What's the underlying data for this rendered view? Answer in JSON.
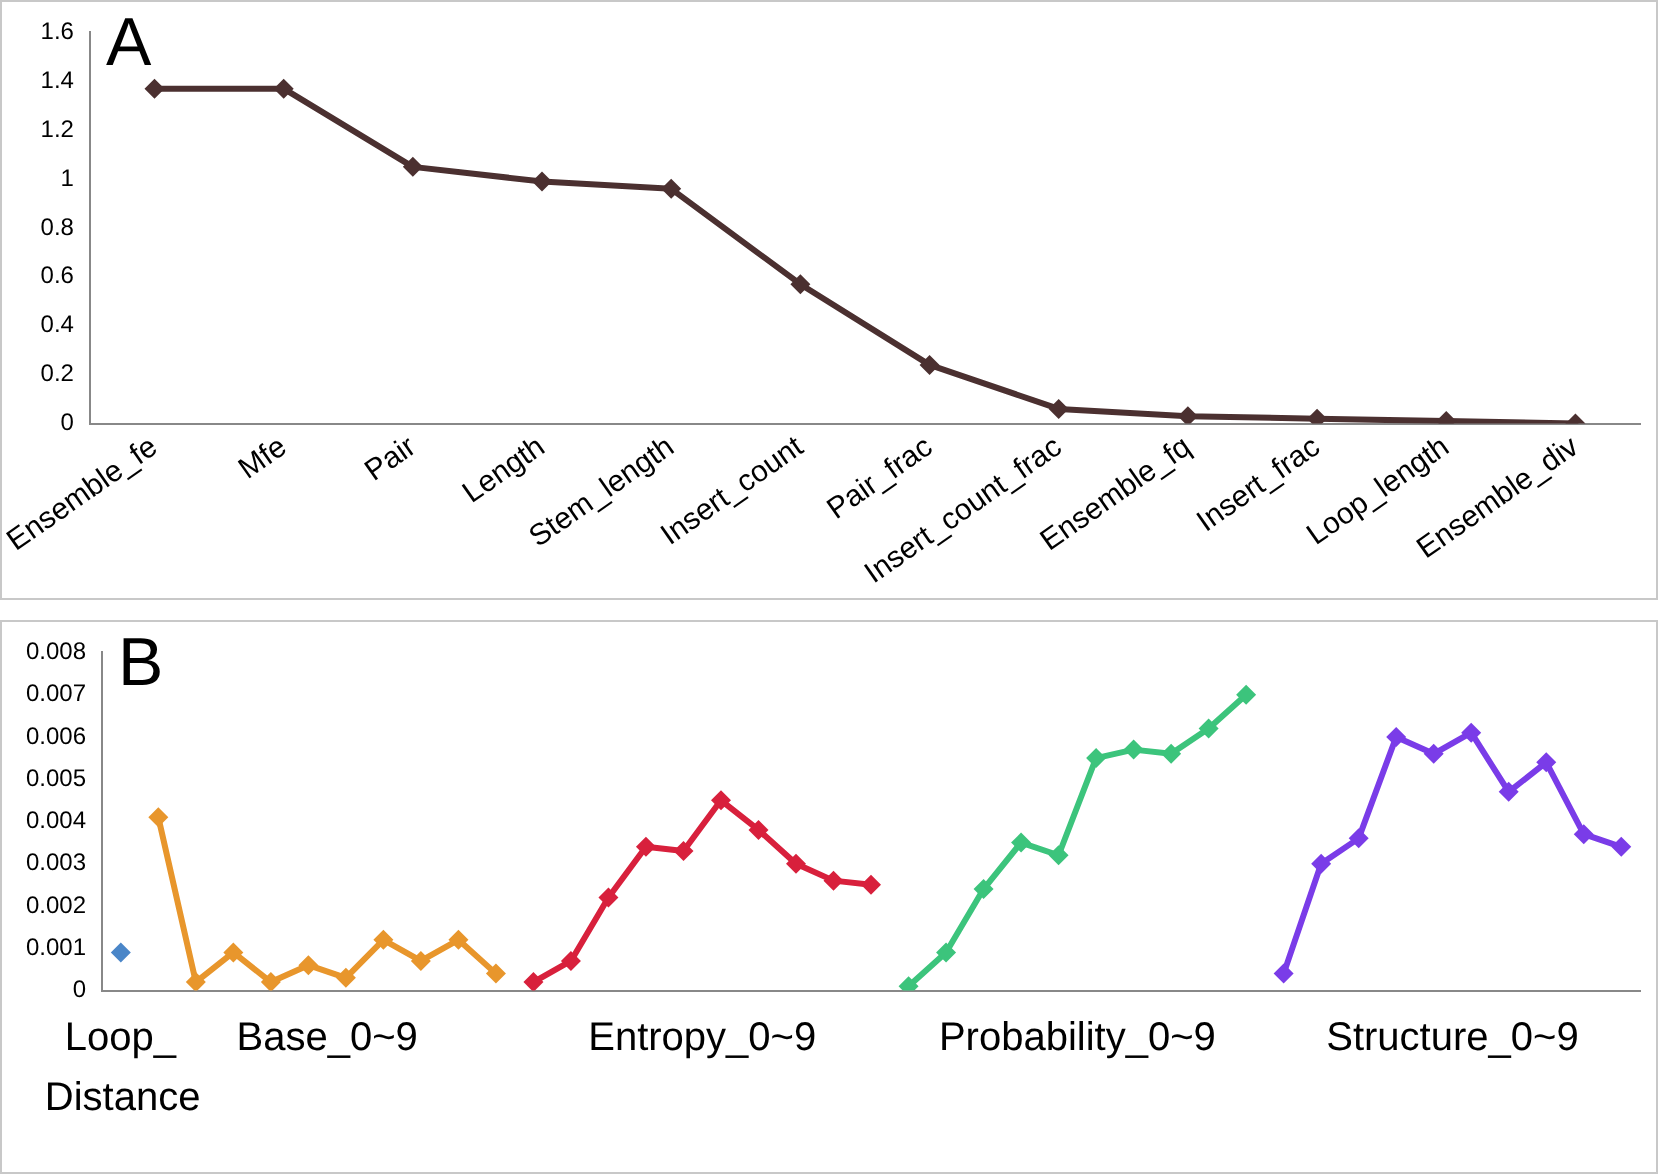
{
  "chart_data": [
    {
      "type": "line",
      "title": "A",
      "categories": [
        "Ensemble_fe",
        "Mfe",
        "Pair",
        "Length",
        "Stem_length",
        "Insert_count",
        "Pair_frac",
        "Insert_count_frac",
        "Ensemble_fq",
        "Insert_frac",
        "Loop_length",
        "Ensemble_div"
      ],
      "values": [
        1.37,
        1.37,
        1.05,
        0.99,
        0.96,
        0.57,
        0.24,
        0.06,
        0.03,
        0.02,
        0.01,
        0
      ],
      "color": "#4b3030",
      "ylim": [
        0,
        1.6
      ],
      "yticks": [
        0,
        0.2,
        0.4,
        0.6,
        0.8,
        1,
        1.2,
        1.4,
        1.6
      ],
      "grid": false,
      "legend": false,
      "marker": "diamond",
      "line_style": "solid"
    },
    {
      "type": "line",
      "title": "B",
      "categories": [
        null,
        null,
        null,
        null,
        null,
        null,
        null,
        null,
        null,
        null,
        null,
        null,
        null,
        null,
        null,
        null,
        null,
        null,
        null,
        null,
        null,
        null,
        null,
        null,
        null,
        null,
        null,
        null,
        null,
        null,
        null,
        null,
        null,
        null,
        null,
        null,
        null,
        null,
        null,
        null,
        null
      ],
      "series": [
        {
          "color": "#4a86c8",
          "values": [
            0.0009,
            null,
            null,
            null,
            null,
            null,
            null,
            null,
            null,
            null,
            null,
            null,
            null,
            null,
            null,
            null,
            null,
            null,
            null,
            null,
            null,
            null,
            null,
            null,
            null,
            null,
            null,
            null,
            null,
            null,
            null,
            null,
            null,
            null,
            null,
            null,
            null,
            null,
            null,
            null,
            null
          ]
        },
        {
          "color": "#e8962c",
          "values": [
            null,
            0.0041,
            0.0002,
            0.0009,
            0.0002,
            0.0006,
            0.0003,
            0.0012,
            0.0007,
            0.0012,
            0.0004,
            null,
            null,
            null,
            null,
            null,
            null,
            null,
            null,
            null,
            null,
            null,
            null,
            null,
            null,
            null,
            null,
            null,
            null,
            null,
            null,
            null,
            null,
            null,
            null,
            null,
            null,
            null,
            null,
            null,
            null
          ]
        },
        {
          "color": "#d8203c",
          "values": [
            null,
            null,
            null,
            null,
            null,
            null,
            null,
            null,
            null,
            null,
            null,
            0.0002,
            0.0007,
            0.0022,
            0.0034,
            0.0033,
            0.0045,
            0.0038,
            0.003,
            0.0026,
            0.0025,
            null,
            null,
            null,
            null,
            null,
            null,
            null,
            null,
            null,
            null,
            null,
            null,
            null,
            null,
            null,
            null,
            null,
            null,
            null,
            null
          ]
        },
        {
          "color": "#3cc47c",
          "values": [
            null,
            null,
            null,
            null,
            null,
            null,
            null,
            null,
            null,
            null,
            null,
            null,
            null,
            null,
            null,
            null,
            null,
            null,
            null,
            null,
            null,
            0.0001,
            0.0009,
            0.0024,
            0.0035,
            0.0032,
            0.0055,
            0.0057,
            0.0056,
            0.0062,
            0.007,
            null,
            null,
            null,
            null,
            null,
            null,
            null,
            null,
            null,
            null
          ]
        },
        {
          "color": "#7a3ce8",
          "values": [
            null,
            null,
            null,
            null,
            null,
            null,
            null,
            null,
            null,
            null,
            null,
            null,
            null,
            null,
            null,
            null,
            null,
            null,
            null,
            null,
            null,
            null,
            null,
            null,
            null,
            null,
            null,
            null,
            null,
            null,
            null,
            0.0004,
            0.003,
            0.0036,
            0.006,
            0.0056,
            0.0061,
            0.0047,
            0.0054,
            0.0037,
            0.0034
          ]
        }
      ],
      "annotations": [
        "Loop_ Distance",
        "Base_0~9",
        "Entropy_0~9",
        "Probability_0~9",
        "Structure_0~9"
      ],
      "ylim": [
        0,
        0.008
      ],
      "yticks": [
        0,
        0.001,
        0.002,
        0.003,
        0.004,
        0.005,
        0.006,
        0.007,
        0.008
      ],
      "grid": false,
      "legend": false,
      "marker": "diamond",
      "line_style": "solid"
    }
  ]
}
